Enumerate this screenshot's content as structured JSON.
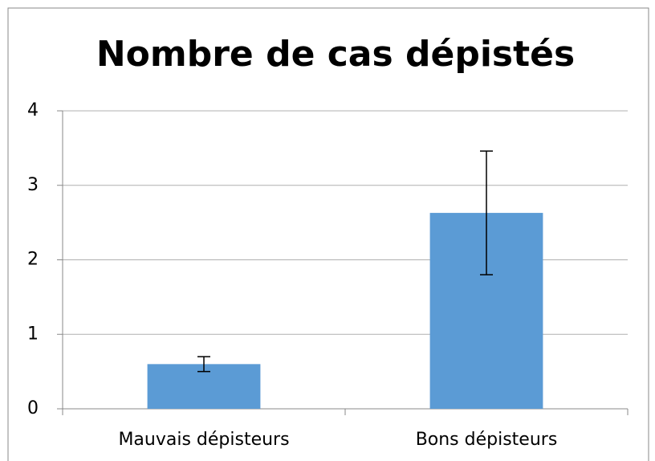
{
  "chart_data": {
    "type": "bar",
    "title": "Nombre de cas dépistés",
    "categories": [
      "Mauvais dépisteurs",
      "Bons dépisteurs"
    ],
    "values": [
      0.6,
      2.63
    ],
    "errors": [
      0.1,
      0.83
    ],
    "color": "#5b9bd5",
    "ylim": [
      0,
      4
    ],
    "yticks": [
      0,
      1,
      2,
      3,
      4
    ],
    "grid": true
  }
}
